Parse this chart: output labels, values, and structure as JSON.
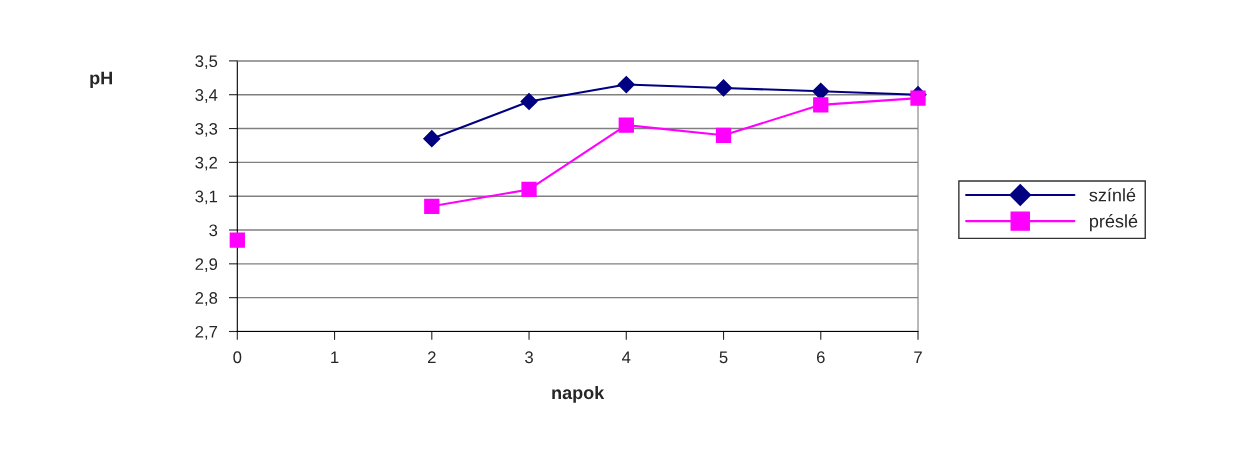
{
  "chart_data": {
    "type": "line",
    "xlabel": "napok",
    "ylabel": "pH",
    "x": [
      0,
      1,
      2,
      3,
      4,
      5,
      6,
      7
    ],
    "series": [
      {
        "name": "színlé",
        "color": "#000080",
        "marker": "diamond",
        "values": [
          null,
          null,
          3.27,
          3.38,
          3.43,
          3.42,
          3.41,
          3.4
        ]
      },
      {
        "name": "préslé",
        "color": "#ff00ff",
        "marker": "square",
        "values": [
          2.97,
          null,
          3.07,
          3.12,
          3.31,
          3.28,
          3.37,
          3.39
        ]
      }
    ],
    "xlim": [
      0,
      7
    ],
    "xticks": [
      0,
      1,
      2,
      3,
      4,
      5,
      6,
      7
    ],
    "ylim": [
      2.7,
      3.5
    ],
    "yticks": [
      {
        "value": 2.7,
        "label": "2,7"
      },
      {
        "value": 2.8,
        "label": "2,8"
      },
      {
        "value": 2.9,
        "label": "2,9"
      },
      {
        "value": 3.0,
        "label": "3"
      },
      {
        "value": 3.1,
        "label": "3,1"
      },
      {
        "value": 3.2,
        "label": "3,2"
      },
      {
        "value": 3.3,
        "label": "3,3"
      },
      {
        "value": 3.4,
        "label": "3,4"
      },
      {
        "value": 3.5,
        "label": "3,5"
      }
    ],
    "grid": "y",
    "legend": "right",
    "line_style": "solid"
  }
}
